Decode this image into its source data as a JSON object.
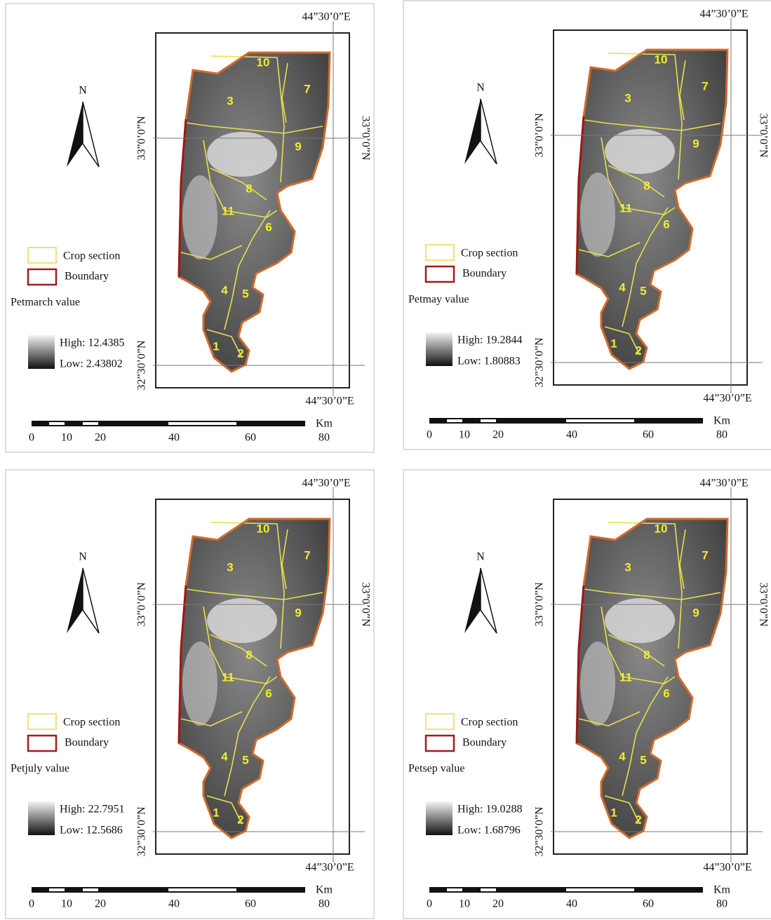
{
  "north_label": "N",
  "lon_label": "44”30’0”E",
  "lat_labels": [
    "33”0’0”N",
    "32”30’0”N"
  ],
  "legend_items": [
    "Crop section",
    "Boundary"
  ],
  "scale_unit": "Km",
  "scale_ticks": [
    0,
    10,
    20,
    40,
    60,
    80
  ],
  "sections": [
    "1",
    "2",
    "3",
    "4",
    "5",
    "6",
    "7",
    "8",
    "9",
    "10",
    "11"
  ],
  "panels": [
    {
      "value_title": "Petmarch value",
      "high": "High: 12.4385",
      "low": "Low: 2.43802"
    },
    {
      "value_title": "Petmay value",
      "high": "High: 19.2844",
      "low": "Low: 1.80883"
    },
    {
      "value_title": "Petjuly value",
      "high": "High: 22.7951",
      "low": "Low: 12.5686"
    },
    {
      "value_title": "Petsep value",
      "high": "High: 19.0288",
      "low": "Low: 1.68796"
    }
  ]
}
